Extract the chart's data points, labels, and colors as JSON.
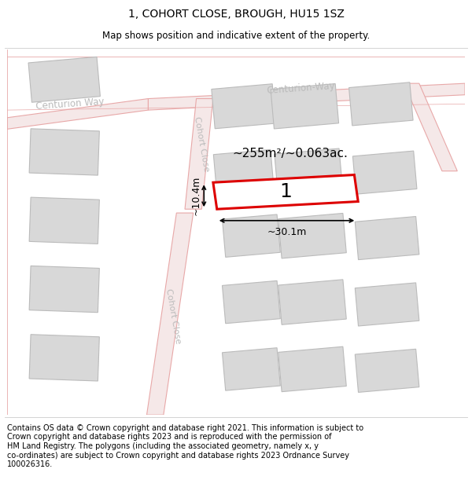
{
  "title": "1, COHORT CLOSE, BROUGH, HU15 1SZ",
  "subtitle": "Map shows position and indicative extent of the property.",
  "footer": "Contains OS data © Crown copyright and database right 2021. This information is subject to\nCrown copyright and database rights 2023 and is reproduced with the permission of\nHM Land Registry. The polygons (including the associated geometry, namely x, y\nco-ordinates) are subject to Crown copyright and database rights 2023 Ordnance Survey\n100026316.",
  "road_color": "#e8a8a8",
  "road_fill": "#f5e8e8",
  "building_fill": "#d8d8d8",
  "building_edge": "#bbbbbb",
  "highlight_color": "#dd0000",
  "street_label_color": "#bbbbbb",
  "label_text": "1",
  "area_text": "~255m²/~0.063ac.",
  "width_text": "~30.1m",
  "height_text": "~10.4m",
  "map_xlim": [
    0,
    600
  ],
  "map_ylim": [
    0,
    480
  ],
  "title_fontsize": 10,
  "subtitle_fontsize": 8.5,
  "footer_fontsize": 7,
  "area_fontsize": 11,
  "dim_fontsize": 9,
  "label_fontsize": 18,
  "street_fontsize": 8.5
}
